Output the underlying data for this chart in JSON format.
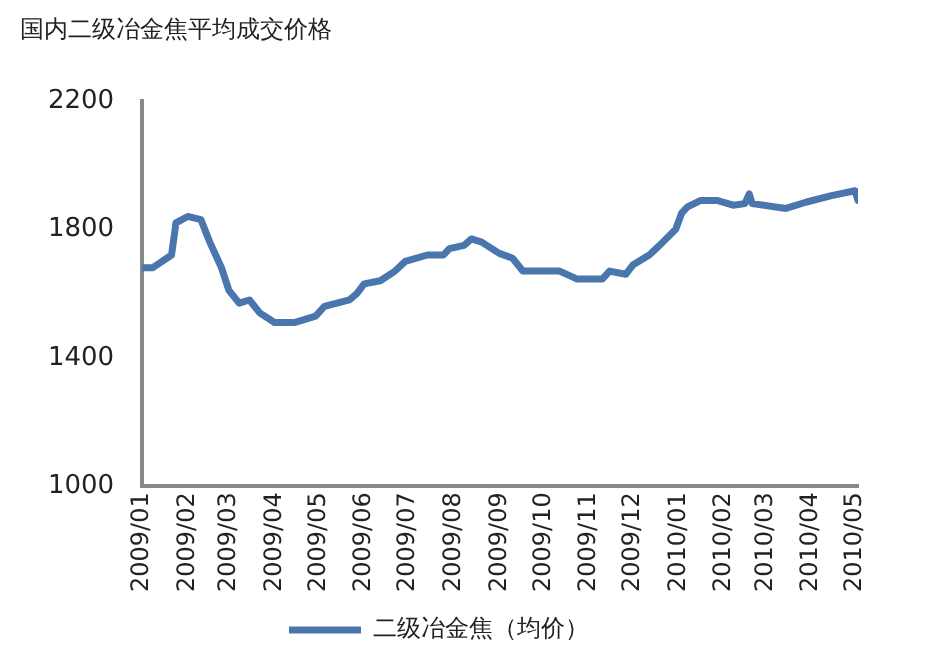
{
  "chart_data": {
    "type": "line",
    "title": "国内二级冶金焦平均成交价格",
    "x": [
      "2009-01-01",
      "2009-01-08",
      "2009-01-21",
      "2009-01-24",
      "2009-02-01",
      "2009-02-10",
      "2009-02-16",
      "2009-02-24",
      "2009-03-01",
      "2009-03-08",
      "2009-03-15",
      "2009-03-22",
      "2009-04-01",
      "2009-04-15",
      "2009-04-29",
      "2009-05-05",
      "2009-05-22",
      "2009-05-27",
      "2009-06-01",
      "2009-06-12",
      "2009-06-22",
      "2009-06-29",
      "2009-07-14",
      "2009-07-25",
      "2009-07-29",
      "2009-08-08",
      "2009-08-13",
      "2009-08-20",
      "2009-09-01",
      "2009-09-10",
      "2009-09-17",
      "2009-10-12",
      "2009-10-24",
      "2009-11-10",
      "2009-11-15",
      "2009-11-26",
      "2009-12-01",
      "2009-12-12",
      "2009-12-19",
      "2009-12-30",
      "2010-01-03",
      "2010-01-07",
      "2010-01-16",
      "2010-01-27",
      "2010-02-07",
      "2010-02-15",
      "2010-02-18",
      "2010-02-20",
      "2010-03-15",
      "2010-03-29",
      "2010-04-15",
      "2010-05-01",
      "2010-05-03"
    ],
    "series": [
      {
        "name": "二级冶金焦（均价）",
        "color": "#4a76ae",
        "values": [
          1680,
          1680,
          1720,
          1820,
          1840,
          1830,
          1760,
          1680,
          1610,
          1570,
          1580,
          1540,
          1510,
          1510,
          1530,
          1560,
          1580,
          1600,
          1630,
          1640,
          1670,
          1700,
          1720,
          1720,
          1740,
          1750,
          1770,
          1760,
          1725,
          1710,
          1670,
          1670,
          1645,
          1645,
          1670,
          1660,
          1690,
          1720,
          1750,
          1800,
          1850,
          1870,
          1890,
          1890,
          1875,
          1880,
          1910,
          1880,
          1865,
          1885,
          1905,
          1920,
          1890
        ]
      }
    ],
    "xlim": [
      "2009-01-01",
      "2010-05-03"
    ],
    "xticks": [
      {
        "value": "2009-01-01",
        "label": "2009/01"
      },
      {
        "value": "2009-02-01",
        "label": "2009/02"
      },
      {
        "value": "2009-03-01",
        "label": "2009/03"
      },
      {
        "value": "2009-04-01",
        "label": "2009/04"
      },
      {
        "value": "2009-05-01",
        "label": "2009/05"
      },
      {
        "value": "2009-06-01",
        "label": "2009/06"
      },
      {
        "value": "2009-07-01",
        "label": "2009/07"
      },
      {
        "value": "2009-08-01",
        "label": "2009/08"
      },
      {
        "value": "2009-09-01",
        "label": "2009/09"
      },
      {
        "value": "2009-10-01",
        "label": "2009/10"
      },
      {
        "value": "2009-11-01",
        "label": "2009/11"
      },
      {
        "value": "2009-12-01",
        "label": "2009/12"
      },
      {
        "value": "2010-01-01",
        "label": "2010/01"
      },
      {
        "value": "2010-02-01",
        "label": "2010/02"
      },
      {
        "value": "2010-03-01",
        "label": "2010/03"
      },
      {
        "value": "2010-04-01",
        "label": "2010/04"
      },
      {
        "value": "2010-05-01",
        "label": "2010/05"
      }
    ],
    "ylim": [
      1000,
      2200
    ],
    "yticks": [
      1000,
      1400,
      1800,
      2200
    ],
    "grid": false,
    "legend": "bottom",
    "marker": "none",
    "line_style": "solid"
  }
}
